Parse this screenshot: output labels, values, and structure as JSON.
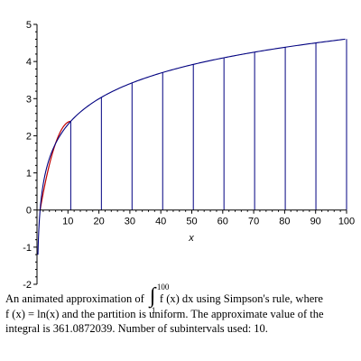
{
  "chart_data": {
    "type": "line",
    "title": "",
    "xlabel": "x",
    "ylabel": "",
    "xlim": [
      0,
      100
    ],
    "ylim": [
      -2,
      5
    ],
    "x_ticks": [
      "10",
      "20",
      "30",
      "40",
      "50",
      "60",
      "70",
      "80",
      "90",
      "100"
    ],
    "y_ticks": [
      "-2",
      "-1",
      "0",
      "1",
      "2",
      "3",
      "4",
      "5"
    ],
    "function": "ln(x)",
    "partition_x": [
      1,
      10.9,
      20.8,
      30.7,
      40.6,
      50.5,
      60.4,
      70.3,
      80.2,
      90.1,
      100
    ],
    "colors": {
      "curve": "#000080",
      "approximation": "#c00000",
      "partition": "#000080"
    }
  },
  "caption": {
    "line1_before": "An animated approximation of ",
    "integral_upper": "100",
    "integral_lower": "1",
    "integrand": "f (x)  dx",
    "line1_after": " using Simpson's rule, where",
    "line2": "f (x) = ln(x)  and the partition is uniform.  The approximate value of the",
    "line3": "integral is 361.0872039.  Number of subintervals used: 10."
  }
}
